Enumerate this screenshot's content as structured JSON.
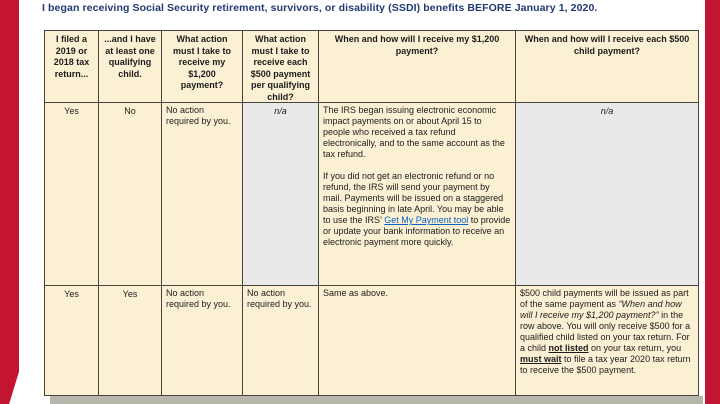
{
  "title": "I began receiving Social Security retirement, survivors, or disability (SSDI) benefits BEFORE January 1, 2020.",
  "colors": {
    "border_red": "#C31432",
    "title_blue": "#203A72",
    "cell_cream": "#FBF0D3",
    "cell_gray": "#E9E9E9",
    "link_blue": "#0563C1",
    "table_border": "#45453C",
    "shadow_gray": "#B6B6AA"
  },
  "table": {
    "headers": [
      "I filed a 2019 or 2018 tax return...",
      "...and I have at least one qualifying child.",
      "What action must I take to receive my $1,200 payment?",
      "What action must I take to receive each $500 payment per qualifying child?",
      "When and how will I receive my $1,200 payment?",
      "When and how will I receive each $500 child payment?"
    ],
    "row1": {
      "filed": "Yes",
      "child": "No",
      "action_1200": "No action required by you.",
      "action_500": "n/a",
      "when_1200": {
        "p1": "The IRS began issuing electronic economic impact payments on or about April 15 to people who received a tax refund electronically, and to the same account as the tax refund.",
        "p2_before_link": "If you did not get an electronic refund or no refund, the IRS will send your payment by mail. Payments will be issued on a staggered basis beginning in late April. You may be able to use the IRS’ ",
        "link_text": "Get My Payment tool",
        "p2_after_link": " to provide or update your bank information to receive an electronic payment more quickly."
      },
      "when_500": "n/a"
    },
    "row2": {
      "filed": "Yes",
      "child": "Yes",
      "action_1200": "No action required by you.",
      "action_500": "No action required by you.",
      "when_1200": "Same as above.",
      "when_500": {
        "part1": "$500 child payments will be issued as part of the same payment as ",
        "italic_quote": "“When and how will I receive my $1,200 payment?”",
        "part2": " in the row above. You will only receive $500 for a qualified child listed on your tax return. For a child ",
        "underline1": "not listed",
        "part3": " on your tax return, you ",
        "underline2": "must wait",
        "part4": " to file a tax year 2020 tax return to receive the $500 payment."
      }
    }
  }
}
